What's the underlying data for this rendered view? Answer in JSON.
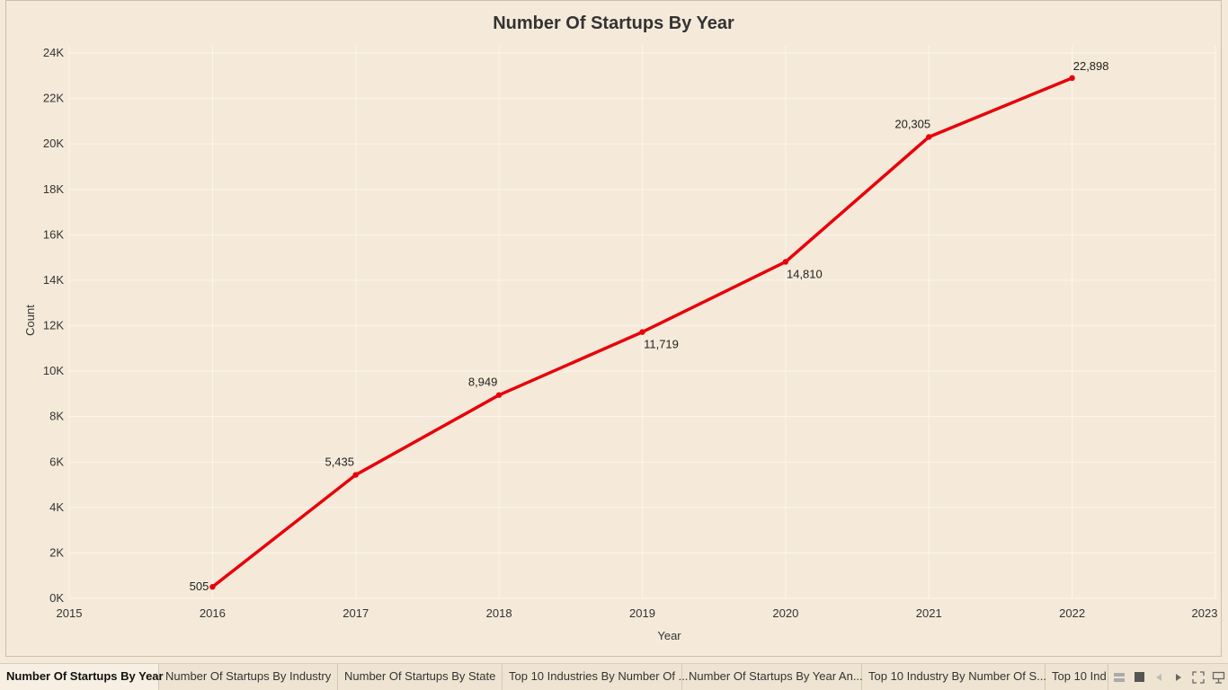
{
  "chart_data": {
    "type": "line",
    "title": "Number Of Startups By Year",
    "xlabel": "Year",
    "ylabel": "Count",
    "x": [
      2016,
      2017,
      2018,
      2019,
      2020,
      2021,
      2022
    ],
    "values": [
      505,
      5435,
      8949,
      11719,
      14810,
      20305,
      22898
    ],
    "data_labels": [
      "505",
      "5,435",
      "8,949",
      "11,719",
      "14,810",
      "20,305",
      "22,898"
    ],
    "x_ticks": [
      "2015",
      "2016",
      "2017",
      "2018",
      "2019",
      "2020",
      "2021",
      "2022",
      "2023"
    ],
    "y_ticks": [
      "0K",
      "2K",
      "4K",
      "6K",
      "8K",
      "10K",
      "12K",
      "14K",
      "16K",
      "18K",
      "20K",
      "22K",
      "24K"
    ],
    "xlim": [
      2015,
      2023
    ],
    "ylim": [
      0,
      24000
    ],
    "grid": true,
    "line_color": "#e8000b"
  },
  "tabs": [
    "Number Of Startups By Year",
    "Number Of Startups By Industry",
    "Number Of Startups By State",
    "Top 10 Industries By Number Of ...",
    "Number Of Startups By Year An...",
    "Top 10 Industry By Number Of S...",
    "Top 10 Ind"
  ],
  "active_tab": 0,
  "controls": [
    "grid-view-icon",
    "single-view-icon",
    "prev-icon",
    "next-icon",
    "fullscreen-icon",
    "present-icon"
  ]
}
